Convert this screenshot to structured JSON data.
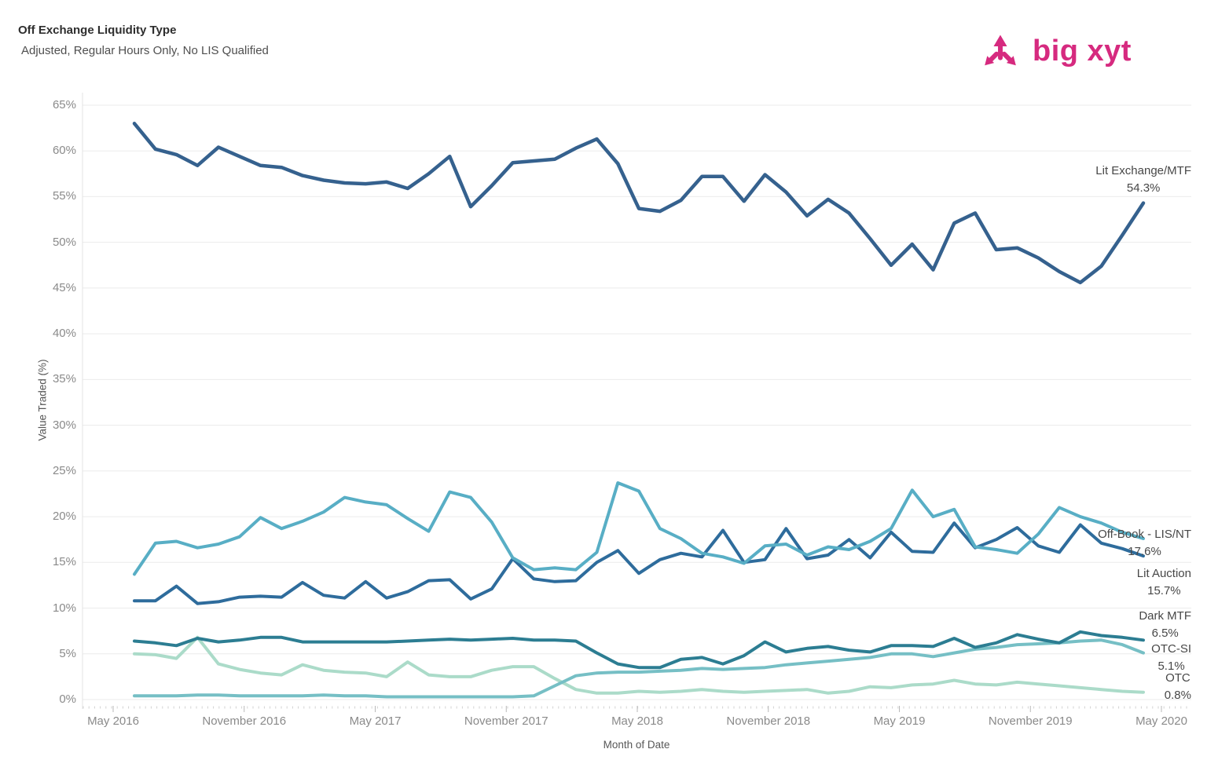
{
  "header": {
    "title": "Off Exchange Liquidity Type",
    "subtitle": "Adjusted, Regular Hours Only, No LIS Qualified"
  },
  "logo": {
    "text": "big xyt",
    "color": "#d62a7f"
  },
  "chart_data": {
    "type": "line",
    "title": "Off Exchange Liquidity Type",
    "subtitle": "Adjusted, Regular Hours Only, No LIS Qualified",
    "xlabel": "Month of Date",
    "ylabel": "Value Traded (%)",
    "x_start": "May 2016",
    "x_end": "May 2020",
    "frequency": "monthly",
    "points": 49,
    "ylim": [
      0,
      65
    ],
    "grid": "horizontal",
    "legend_position": "end-of-line-labels",
    "x_tick_labels": [
      "May 2016",
      "November 2016",
      "May 2017",
      "November 2017",
      "May 2018",
      "November 2018",
      "May 2019",
      "November 2019",
      "May 2020"
    ],
    "y_tick_labels": [
      "0%",
      "5%",
      "10%",
      "15%",
      "20%",
      "25%",
      "30%",
      "35%",
      "40%",
      "45%",
      "50%",
      "55%",
      "60%",
      "65%"
    ],
    "series": [
      {
        "name": "Lit Exchange/MTF",
        "end_label": "54.3%",
        "color": "#35618E",
        "values": [
          63.0,
          60.2,
          59.6,
          58.4,
          60.4,
          59.4,
          58.4,
          58.2,
          57.3,
          56.8,
          56.5,
          56.4,
          56.6,
          55.9,
          57.5,
          59.4,
          53.9,
          56.2,
          58.7,
          58.9,
          59.1,
          60.3,
          61.3,
          58.6,
          53.7,
          53.4,
          54.6,
          57.2,
          57.2,
          54.5,
          57.4,
          55.5,
          52.9,
          54.7,
          53.2,
          50.4,
          47.5,
          49.8,
          47.0,
          52.1,
          53.2,
          49.2,
          49.4,
          48.3,
          46.8,
          45.6,
          47.4,
          50.8,
          54.3
        ]
      },
      {
        "name": "Off-Book - LIS/NT",
        "end_label": "17.6%",
        "color": "#58AEC5",
        "values": [
          13.7,
          17.1,
          17.3,
          16.6,
          17.0,
          17.8,
          19.9,
          18.7,
          19.5,
          20.5,
          22.1,
          21.6,
          21.3,
          19.8,
          18.4,
          22.7,
          22.1,
          19.4,
          15.5,
          14.2,
          14.4,
          14.2,
          16.1,
          23.7,
          22.8,
          18.7,
          17.6,
          16.0,
          15.6,
          14.9,
          16.8,
          17.0,
          15.8,
          16.7,
          16.4,
          17.3,
          18.7,
          22.9,
          20.0,
          20.8,
          16.7,
          16.4,
          16.0,
          18.1,
          21.0,
          20.0,
          19.3,
          18.3,
          17.6
        ]
      },
      {
        "name": "Lit Auction",
        "end_label": "15.7%",
        "color": "#2E6C9C",
        "values": [
          10.8,
          10.8,
          12.4,
          10.5,
          10.7,
          11.2,
          11.3,
          11.2,
          12.8,
          11.4,
          11.1,
          12.9,
          11.1,
          11.8,
          13.0,
          13.1,
          11.0,
          12.1,
          15.4,
          13.2,
          12.9,
          13.0,
          15.0,
          16.3,
          13.8,
          15.3,
          16.0,
          15.6,
          18.5,
          15.0,
          15.3,
          18.7,
          15.4,
          15.8,
          17.5,
          15.5,
          18.3,
          16.2,
          16.1,
          19.3,
          16.6,
          17.5,
          18.8,
          16.8,
          16.1,
          19.1,
          17.1,
          16.5,
          15.7
        ]
      },
      {
        "name": "Dark MTF",
        "end_label": "6.5%",
        "color": "#2C7D92",
        "values": [
          6.4,
          6.2,
          5.9,
          6.7,
          6.3,
          6.5,
          6.8,
          6.8,
          6.3,
          6.3,
          6.3,
          6.3,
          6.3,
          6.4,
          6.5,
          6.6,
          6.5,
          6.6,
          6.7,
          6.5,
          6.5,
          6.4,
          5.1,
          3.9,
          3.5,
          3.5,
          4.4,
          4.6,
          3.9,
          4.8,
          6.3,
          5.2,
          5.6,
          5.8,
          5.4,
          5.2,
          5.9,
          5.9,
          5.8,
          6.7,
          5.7,
          6.2,
          7.1,
          6.6,
          6.2,
          7.4,
          7.0,
          6.8,
          6.5
        ]
      },
      {
        "name": "OTC-SI",
        "end_label": "5.1%",
        "color": "#76BFC5",
        "values": [
          0.4,
          0.4,
          0.4,
          0.5,
          0.5,
          0.4,
          0.4,
          0.4,
          0.4,
          0.5,
          0.4,
          0.4,
          0.3,
          0.3,
          0.3,
          0.3,
          0.3,
          0.3,
          0.3,
          0.4,
          1.5,
          2.6,
          2.9,
          3.0,
          3.0,
          3.1,
          3.2,
          3.4,
          3.3,
          3.4,
          3.5,
          3.8,
          4.0,
          4.2,
          4.4,
          4.6,
          5.0,
          5.0,
          4.7,
          5.1,
          5.5,
          5.7,
          6.0,
          6.1,
          6.2,
          6.4,
          6.5,
          6.0,
          5.1
        ]
      },
      {
        "name": "OTC",
        "end_label": "0.8%",
        "color": "#ABDBC9",
        "values": [
          5.0,
          4.9,
          4.5,
          6.8,
          3.9,
          3.3,
          2.9,
          2.7,
          3.8,
          3.2,
          3.0,
          2.9,
          2.5,
          4.1,
          2.7,
          2.5,
          2.5,
          3.2,
          3.6,
          3.6,
          2.3,
          1.1,
          0.7,
          0.7,
          0.9,
          0.8,
          0.9,
          1.1,
          0.9,
          0.8,
          0.9,
          1.0,
          1.1,
          0.7,
          0.9,
          1.4,
          1.3,
          1.6,
          1.7,
          2.1,
          1.7,
          1.6,
          1.9,
          1.7,
          1.5,
          1.3,
          1.1,
          0.9,
          0.8
        ]
      }
    ]
  }
}
